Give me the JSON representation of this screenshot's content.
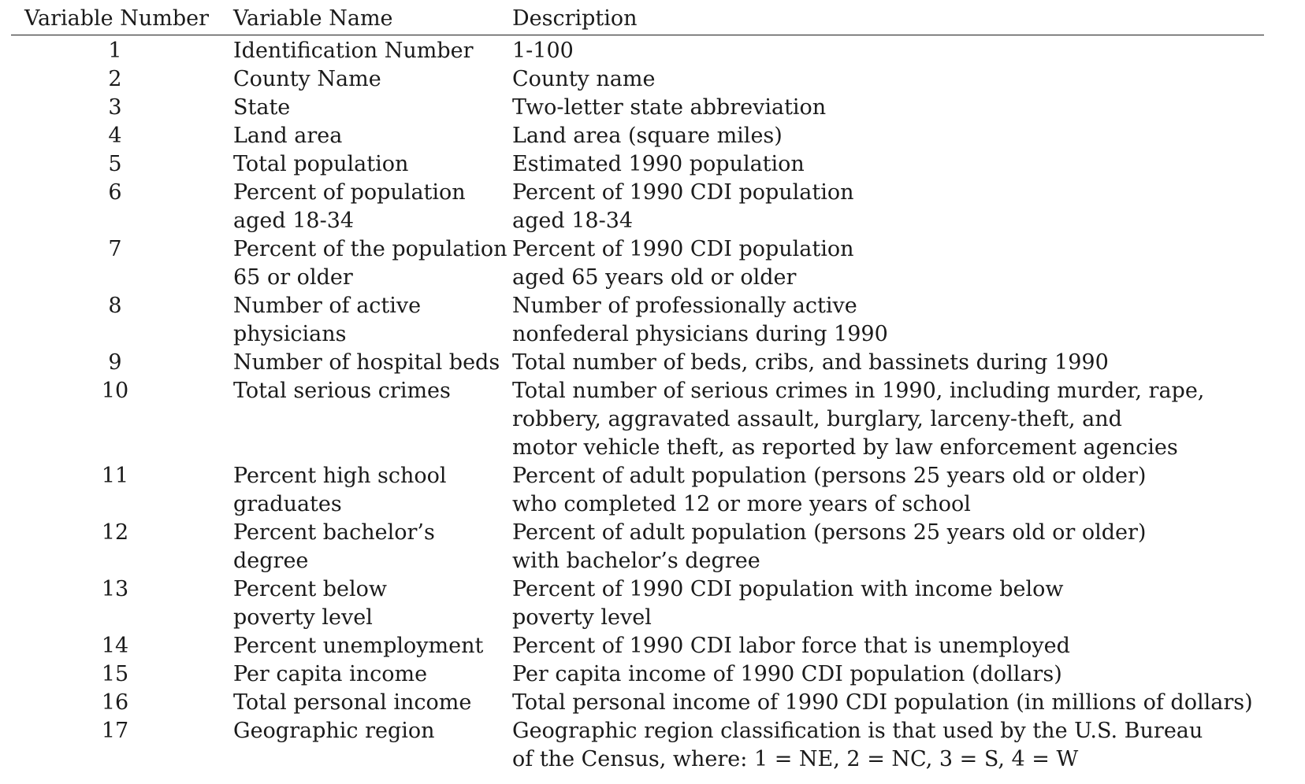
{
  "table": {
    "headers": {
      "number": "Variable Number",
      "name": "Variable Name",
      "description": "Description"
    },
    "rows": [
      {
        "number": "1",
        "name": "Identification Number",
        "description": "1-100"
      },
      {
        "number": "2",
        "name": "County Name",
        "description": "County name"
      },
      {
        "number": "3",
        "name": "State",
        "description": "Two-letter state abbreviation"
      },
      {
        "number": "4",
        "name": "Land area",
        "description": "Land area (square miles)"
      },
      {
        "number": "5",
        "name": "Total population",
        "description": "Estimated 1990 population"
      },
      {
        "number": "6",
        "name": "Percent of population\naged 18-34",
        "description": "Percent of 1990 CDI population\naged 18-34"
      },
      {
        "number": "7",
        "name": "Percent of the population\n65 or older",
        "description": "Percent of 1990 CDI population\naged 65 years old or older"
      },
      {
        "number": "8",
        "name": "Number of active\nphysicians",
        "description": "Number of professionally active\nnonfederal physicians during 1990"
      },
      {
        "number": "9",
        "name": "Number of hospital beds",
        "description": "Total number of beds, cribs, and bassinets during 1990"
      },
      {
        "number": "10",
        "name": "Total serious crimes",
        "description": "Total number of serious crimes in 1990, including murder, rape,\nrobbery, aggravated assault, burglary, larceny-theft, and\nmotor vehicle theft, as reported by law enforcement agencies"
      },
      {
        "number": "11",
        "name": "Percent high school\ngraduates",
        "description": "Percent of adult population (persons 25 years old or older)\nwho completed 12 or more years of school"
      },
      {
        "number": "12",
        "name": "Percent bachelor’s\ndegree",
        "description": "Percent of adult population (persons 25 years old or older)\nwith bachelor’s degree"
      },
      {
        "number": "13",
        "name": "Percent below\npoverty level",
        "description": "Percent of 1990 CDI population with income below\npoverty level"
      },
      {
        "number": "14",
        "name": "Percent unemployment",
        "description": "Percent of 1990 CDI labor force that is unemployed"
      },
      {
        "number": "15",
        "name": "Per capita income",
        "description": "Per capita income of 1990 CDI population (dollars)"
      },
      {
        "number": "16",
        "name": "Total personal income",
        "description": "Total personal income of 1990 CDI population (in millions of dollars)"
      },
      {
        "number": "17",
        "name": "Geographic region",
        "description": "Geographic region classification is that used by the U.S. Bureau\nof the Census, where: 1 = NE, 2 = NC, 3 = S, 4 = W"
      }
    ]
  }
}
